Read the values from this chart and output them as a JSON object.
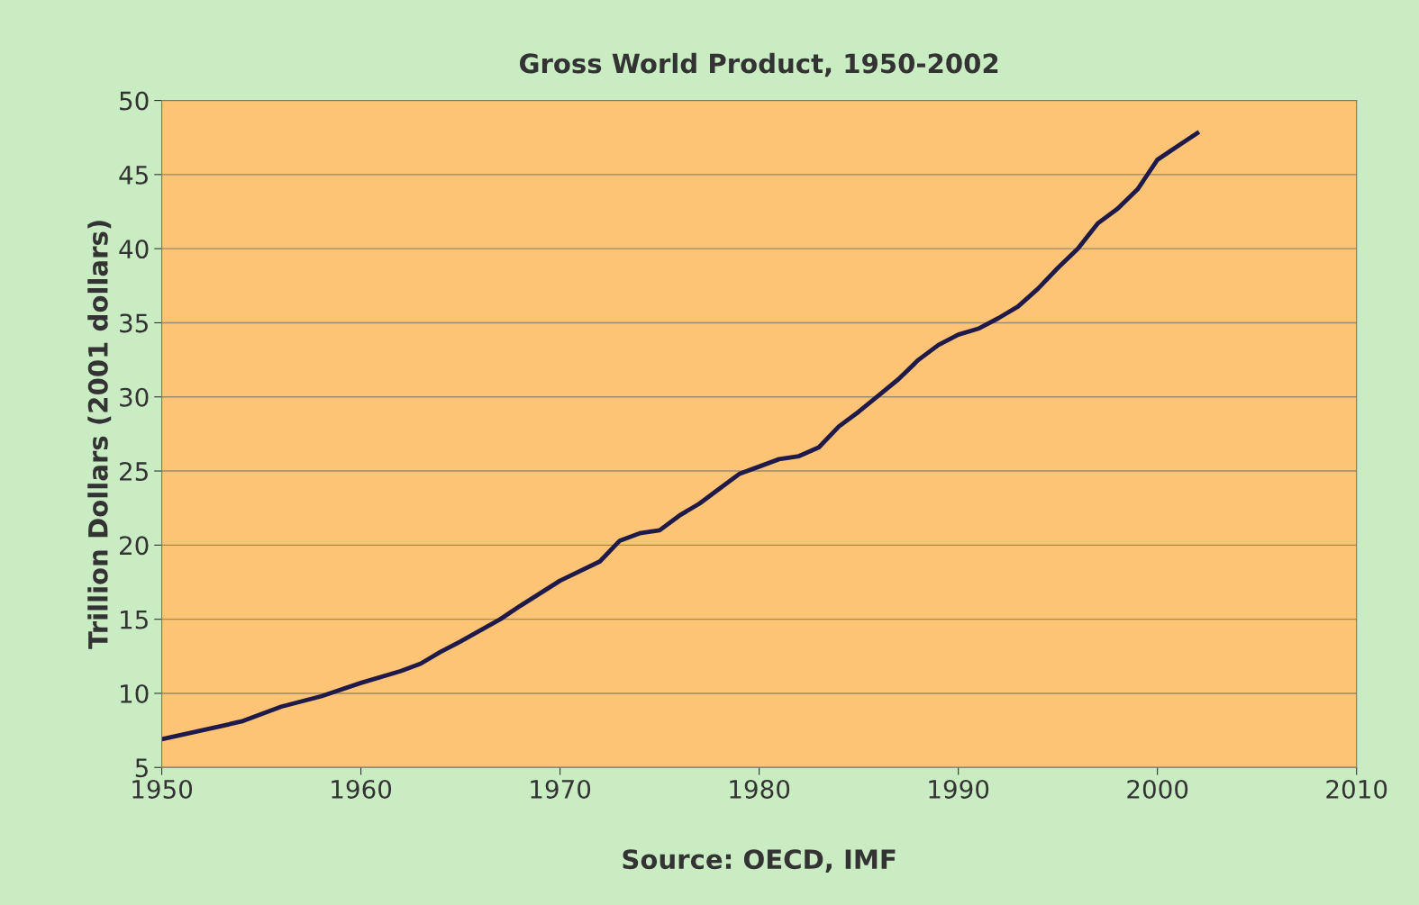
{
  "chart_data": {
    "type": "line",
    "title": "Gross World Product, 1950-2002",
    "ylabel": "Trillion Dollars (2001 dollars)",
    "annotations": [
      "Source: OECD, IMF"
    ],
    "x": [
      1950,
      1952,
      1954,
      1955,
      1956,
      1958,
      1960,
      1962,
      1963,
      1964,
      1965,
      1967,
      1968,
      1970,
      1972,
      1973,
      1974,
      1975,
      1976,
      1977,
      1978,
      1979,
      1980,
      1981,
      1982,
      1983,
      1984,
      1985,
      1986,
      1987,
      1988,
      1989,
      1990,
      1991,
      1992,
      1993,
      1994,
      1995,
      1996,
      1997,
      1998,
      1999,
      2000,
      2001,
      2002
    ],
    "series": [
      {
        "color": "#1f1a4a",
        "values": [
          6.9,
          7.5,
          8.1,
          8.6,
          9.1,
          9.8,
          10.7,
          11.5,
          12.0,
          12.8,
          13.5,
          15.0,
          15.9,
          17.6,
          18.9,
          20.3,
          20.8,
          21.0,
          22.0,
          22.8,
          23.8,
          24.8,
          25.3,
          25.8,
          26.0,
          26.6,
          28.0,
          29.0,
          30.1,
          31.2,
          32.5,
          33.5,
          34.2,
          34.6,
          35.3,
          36.1,
          37.3,
          38.7,
          40.0,
          41.7,
          42.7,
          44.0,
          46.0,
          46.9,
          47.8
        ]
      }
    ],
    "xlim": [
      1950,
      2010
    ],
    "xticks": [
      1950,
      1960,
      1970,
      1980,
      1990,
      2000,
      2010
    ],
    "ylim": [
      5,
      50
    ],
    "yticks": [
      5,
      10,
      15,
      20,
      25,
      30,
      35,
      40,
      45,
      50
    ],
    "grid": "y",
    "marker": "none",
    "line_style": "solid",
    "legend": false
  }
}
